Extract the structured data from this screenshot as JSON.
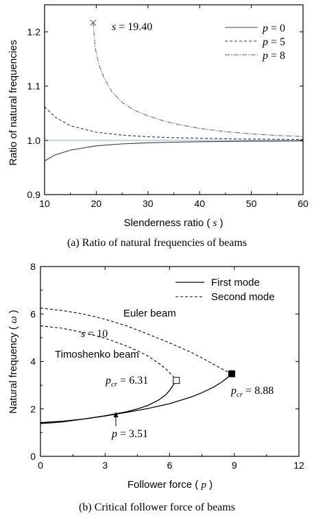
{
  "chart_data": [
    {
      "type": "line",
      "caption": "(a)  Ratio of natural frequencies of beams",
      "xlabel": "Slenderness ratio",
      "xlabel_symbol": "s",
      "ylabel": "Ratio of natural frequencies",
      "xlim": [
        10,
        60
      ],
      "ylim": [
        0.9,
        1.25
      ],
      "xticks": [
        "10",
        "20",
        "30",
        "40",
        "50",
        "60"
      ],
      "yticks": [
        "0.9",
        "1.0",
        "1.1",
        "1.2"
      ],
      "legend_position": "top-right",
      "annotation": {
        "label": "s = 19.40",
        "x": 19.4,
        "y": 1.217
      },
      "series": [
        {
          "name": "p = 0",
          "style": "solid",
          "x": [
            10,
            12,
            15,
            20,
            25,
            30,
            35,
            40,
            45,
            50,
            55,
            60
          ],
          "y": [
            0.962,
            0.973,
            0.982,
            0.99,
            0.9935,
            0.9955,
            0.9967,
            0.9975,
            0.998,
            0.9984,
            0.9987,
            0.999
          ]
        },
        {
          "name": "p = 5",
          "style": "dashed",
          "x": [
            10,
            12,
            15,
            20,
            25,
            30,
            35,
            40,
            45,
            50,
            55,
            60
          ],
          "y": [
            1.062,
            1.043,
            1.027,
            1.015,
            1.0097,
            1.0067,
            1.005,
            1.0038,
            1.003,
            1.0024,
            1.002,
            1.0017
          ]
        },
        {
          "name": "p = 8",
          "style": "dashdot",
          "x": [
            19.4,
            19.8,
            20.5,
            21.5,
            23,
            25,
            27.5,
            30,
            33,
            36,
            40,
            45,
            50,
            55,
            60
          ],
          "y": [
            1.217,
            1.17,
            1.14,
            1.115,
            1.09,
            1.07,
            1.055,
            1.045,
            1.036,
            1.029,
            1.022,
            1.016,
            1.012,
            1.009,
            1.007
          ]
        }
      ]
    },
    {
      "type": "line",
      "caption": "(b)  Critical follower force of beams",
      "xlabel": "Follower force",
      "xlabel_symbol": "p",
      "ylabel": "Natural frequency",
      "ylabel_symbol": "ω",
      "xlim": [
        0,
        12
      ],
      "ylim": [
        0,
        8
      ],
      "xticks": [
        "0",
        "3",
        "6",
        "9",
        "12"
      ],
      "yticks": [
        "0",
        "2",
        "4",
        "6",
        "8"
      ],
      "legend_position": "top-right",
      "legend": [
        {
          "name": "First mode",
          "style": "solid"
        },
        {
          "name": "Second mode",
          "style": "dashed"
        }
      ],
      "annotations": {
        "euler": "Euler beam",
        "s_label": "s = 10",
        "timo": "Timoshenko beam",
        "pcr_timo": "pcr = 6.31",
        "pcr_euler": "pcr = 8.88",
        "p_cross": "p = 3.51"
      },
      "markers": [
        {
          "name": "Timoshenko critical point",
          "x": 6.31,
          "y": 3.2,
          "style": "open-square"
        },
        {
          "name": "Euler critical point",
          "x": 8.88,
          "y": 3.48,
          "style": "filled-square"
        }
      ],
      "series": [
        {
          "name": "Euler beam first mode",
          "style": "solid",
          "x": [
            0,
            1,
            2,
            3,
            4,
            5,
            6,
            7,
            7.5,
            8,
            8.4,
            8.7,
            8.88
          ],
          "y": [
            1.42,
            1.48,
            1.57,
            1.7,
            1.85,
            2.02,
            2.22,
            2.5,
            2.68,
            2.9,
            3.12,
            3.33,
            3.48
          ]
        },
        {
          "name": "Euler beam second mode",
          "style": "dashed",
          "x": [
            0,
            1,
            2,
            3,
            4,
            5,
            6,
            7,
            7.5,
            8,
            8.4,
            8.7,
            8.88
          ],
          "y": [
            6.25,
            6.15,
            6.0,
            5.78,
            5.5,
            5.15,
            4.78,
            4.38,
            4.15,
            3.9,
            3.7,
            3.55,
            3.48
          ]
        },
        {
          "name": "Timoshenko beam first mode",
          "style": "solid",
          "x": [
            0,
            1,
            2,
            3,
            4,
            4.5,
            5,
            5.5,
            5.8,
            6.0,
            6.15,
            6.31
          ],
          "y": [
            1.38,
            1.45,
            1.57,
            1.71,
            1.88,
            2.0,
            2.15,
            2.38,
            2.58,
            2.78,
            2.98,
            3.2
          ]
        },
        {
          "name": "Timoshenko beam second mode",
          "style": "dashed",
          "x": [
            0,
            1,
            2,
            3,
            4,
            4.5,
            5,
            5.5,
            5.8,
            6.0,
            6.15,
            6.31
          ],
          "y": [
            5.5,
            5.4,
            5.22,
            4.98,
            4.65,
            4.45,
            4.22,
            3.92,
            3.7,
            3.52,
            3.38,
            3.2
          ]
        }
      ]
    }
  ]
}
